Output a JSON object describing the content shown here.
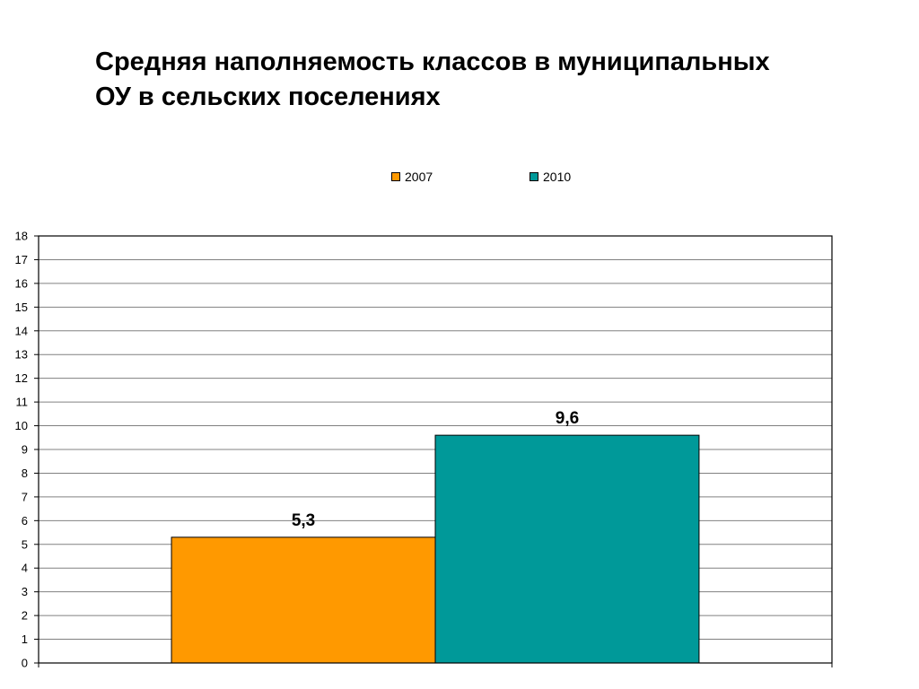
{
  "slide": {
    "title_line1": "Средняя наполняемость классов в муниципальных",
    "title_line2": "ОУ в сельских поселениях"
  },
  "chart_data": {
    "type": "bar",
    "title": "",
    "xlabel": "",
    "ylabel": "",
    "categories": [
      ""
    ],
    "series": [
      {
        "name": "2007",
        "values": [
          5.3
        ],
        "color": "#FF9900",
        "label": "5,3"
      },
      {
        "name": "2010",
        "values": [
          9.6
        ],
        "color": "#009999",
        "label": "9,6"
      }
    ],
    "ylim": [
      0,
      18
    ],
    "yticks": [
      "0",
      "1",
      "2",
      "3",
      "4",
      "5",
      "6",
      "7",
      "8",
      "9",
      "10",
      "11",
      "12",
      "13",
      "14",
      "15",
      "16",
      "17",
      "18"
    ],
    "grid": true,
    "legend_position": "top"
  }
}
